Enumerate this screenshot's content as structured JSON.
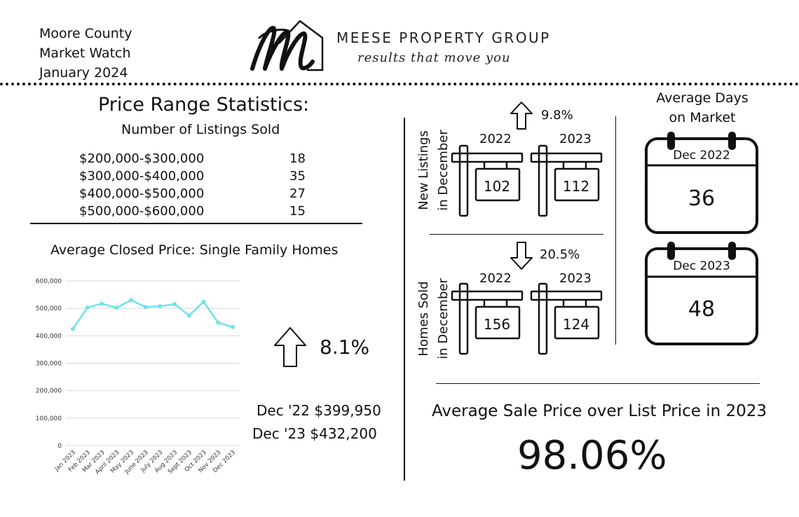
{
  "header": {
    "lines": [
      "Moore County",
      "Market Watch",
      "January 2024"
    ],
    "brand_name": "MEESE PROPERTY GROUP",
    "tagline": "results that move you",
    "logo_letter": "M"
  },
  "price_range": {
    "title": "Price Range Statistics:",
    "subtitle": "Number of Listings Sold",
    "rows": [
      {
        "range": "$200,000-$300,000",
        "count": "18"
      },
      {
        "range": "$300,000-$400,000",
        "count": "35"
      },
      {
        "range": "$400,000-$500,000",
        "count": "27"
      },
      {
        "range": "$500,000-$600,000",
        "count": "15"
      }
    ]
  },
  "closed_price": {
    "title": "Average Closed Price: Single Family Homes",
    "change": "8.1%",
    "line1": "Dec '22 $399,950",
    "line2": "Dec '23 $432,200"
  },
  "chart_data": {
    "type": "line",
    "categories": [
      "Jan 2023",
      "Feb 2023",
      "Mar 2023",
      "April 2023",
      "May 2023",
      "June 2023",
      "July 2023",
      "Aug 2023",
      "Sept 2023",
      "Oct 2023",
      "Nov 2023",
      "Dec 2023"
    ],
    "values": [
      425000,
      503000,
      517000,
      502000,
      530000,
      505000,
      508000,
      515000,
      474000,
      524000,
      448000,
      432000
    ],
    "ylim": [
      0,
      600000
    ],
    "yticks": [
      0,
      100000,
      200000,
      300000,
      400000,
      500000,
      600000
    ],
    "ytick_labels": [
      "0",
      "100,000",
      "200,000",
      "300,000",
      "400,000",
      "500,000",
      "600,000"
    ],
    "grid": true,
    "color": "#6fe3ea"
  },
  "new_listings": {
    "label_line1": "New Listings",
    "label_line2": "in December",
    "change": "9.8%",
    "years": [
      "2022",
      "2023"
    ],
    "values": [
      "102",
      "112"
    ]
  },
  "homes_sold": {
    "label_line1": "Homes Sold",
    "label_line2": "in December",
    "change": "20.5%",
    "years": [
      "2022",
      "2023"
    ],
    "values": [
      "156",
      "124"
    ]
  },
  "days_on_market": {
    "title_line1": "Average Days",
    "title_line2": "on Market",
    "cal1_label": "Dec 2022",
    "cal1_value": "36",
    "cal2_label": "Dec 2023",
    "cal2_value": "48"
  },
  "sale_price": {
    "title": "Average Sale Price over List Price in 2023",
    "value": "98.06%"
  }
}
